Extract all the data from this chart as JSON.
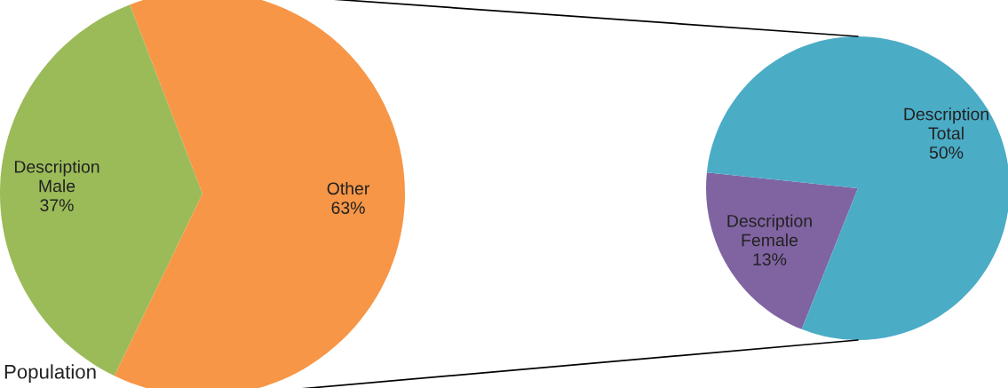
{
  "chart_data": [
    {
      "type": "pie",
      "categories": [
        "Description Male",
        "Other"
      ],
      "values": [
        37,
        63
      ],
      "colors": [
        "#9bbb59",
        "#f79646"
      ],
      "value_labels": [
        "37%",
        "63%"
      ],
      "annotations": [
        "Population"
      ]
    },
    {
      "type": "pie",
      "categories": [
        "Description Female",
        "Description Total"
      ],
      "values": [
        13,
        50
      ],
      "colors": [
        "#8064a2",
        "#4bacc6"
      ],
      "value_labels": [
        "13%",
        "50%"
      ]
    }
  ]
}
